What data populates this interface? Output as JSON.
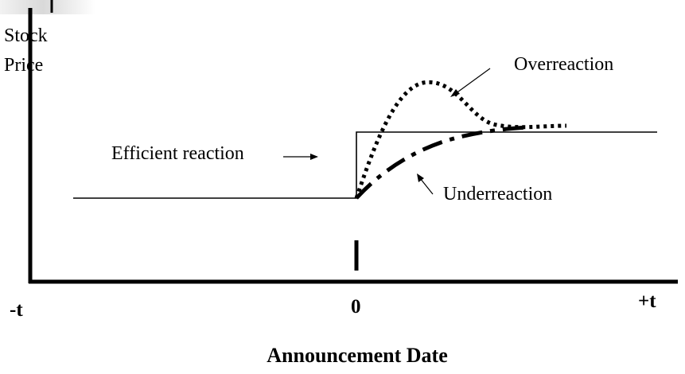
{
  "diagram": {
    "y_axis_label_line1": "Stock",
    "y_axis_label_line2": "Price",
    "x_tick_left": "-t",
    "x_tick_zero": "0",
    "x_tick_right": "+t",
    "x_axis_title": "Announcement Date",
    "overreaction_label": "Overreaction",
    "efficient_label": "Efficient reaction",
    "underreaction_label": "Underreaction"
  },
  "colors": {
    "ink": "#000000",
    "background": "#ffffff"
  }
}
